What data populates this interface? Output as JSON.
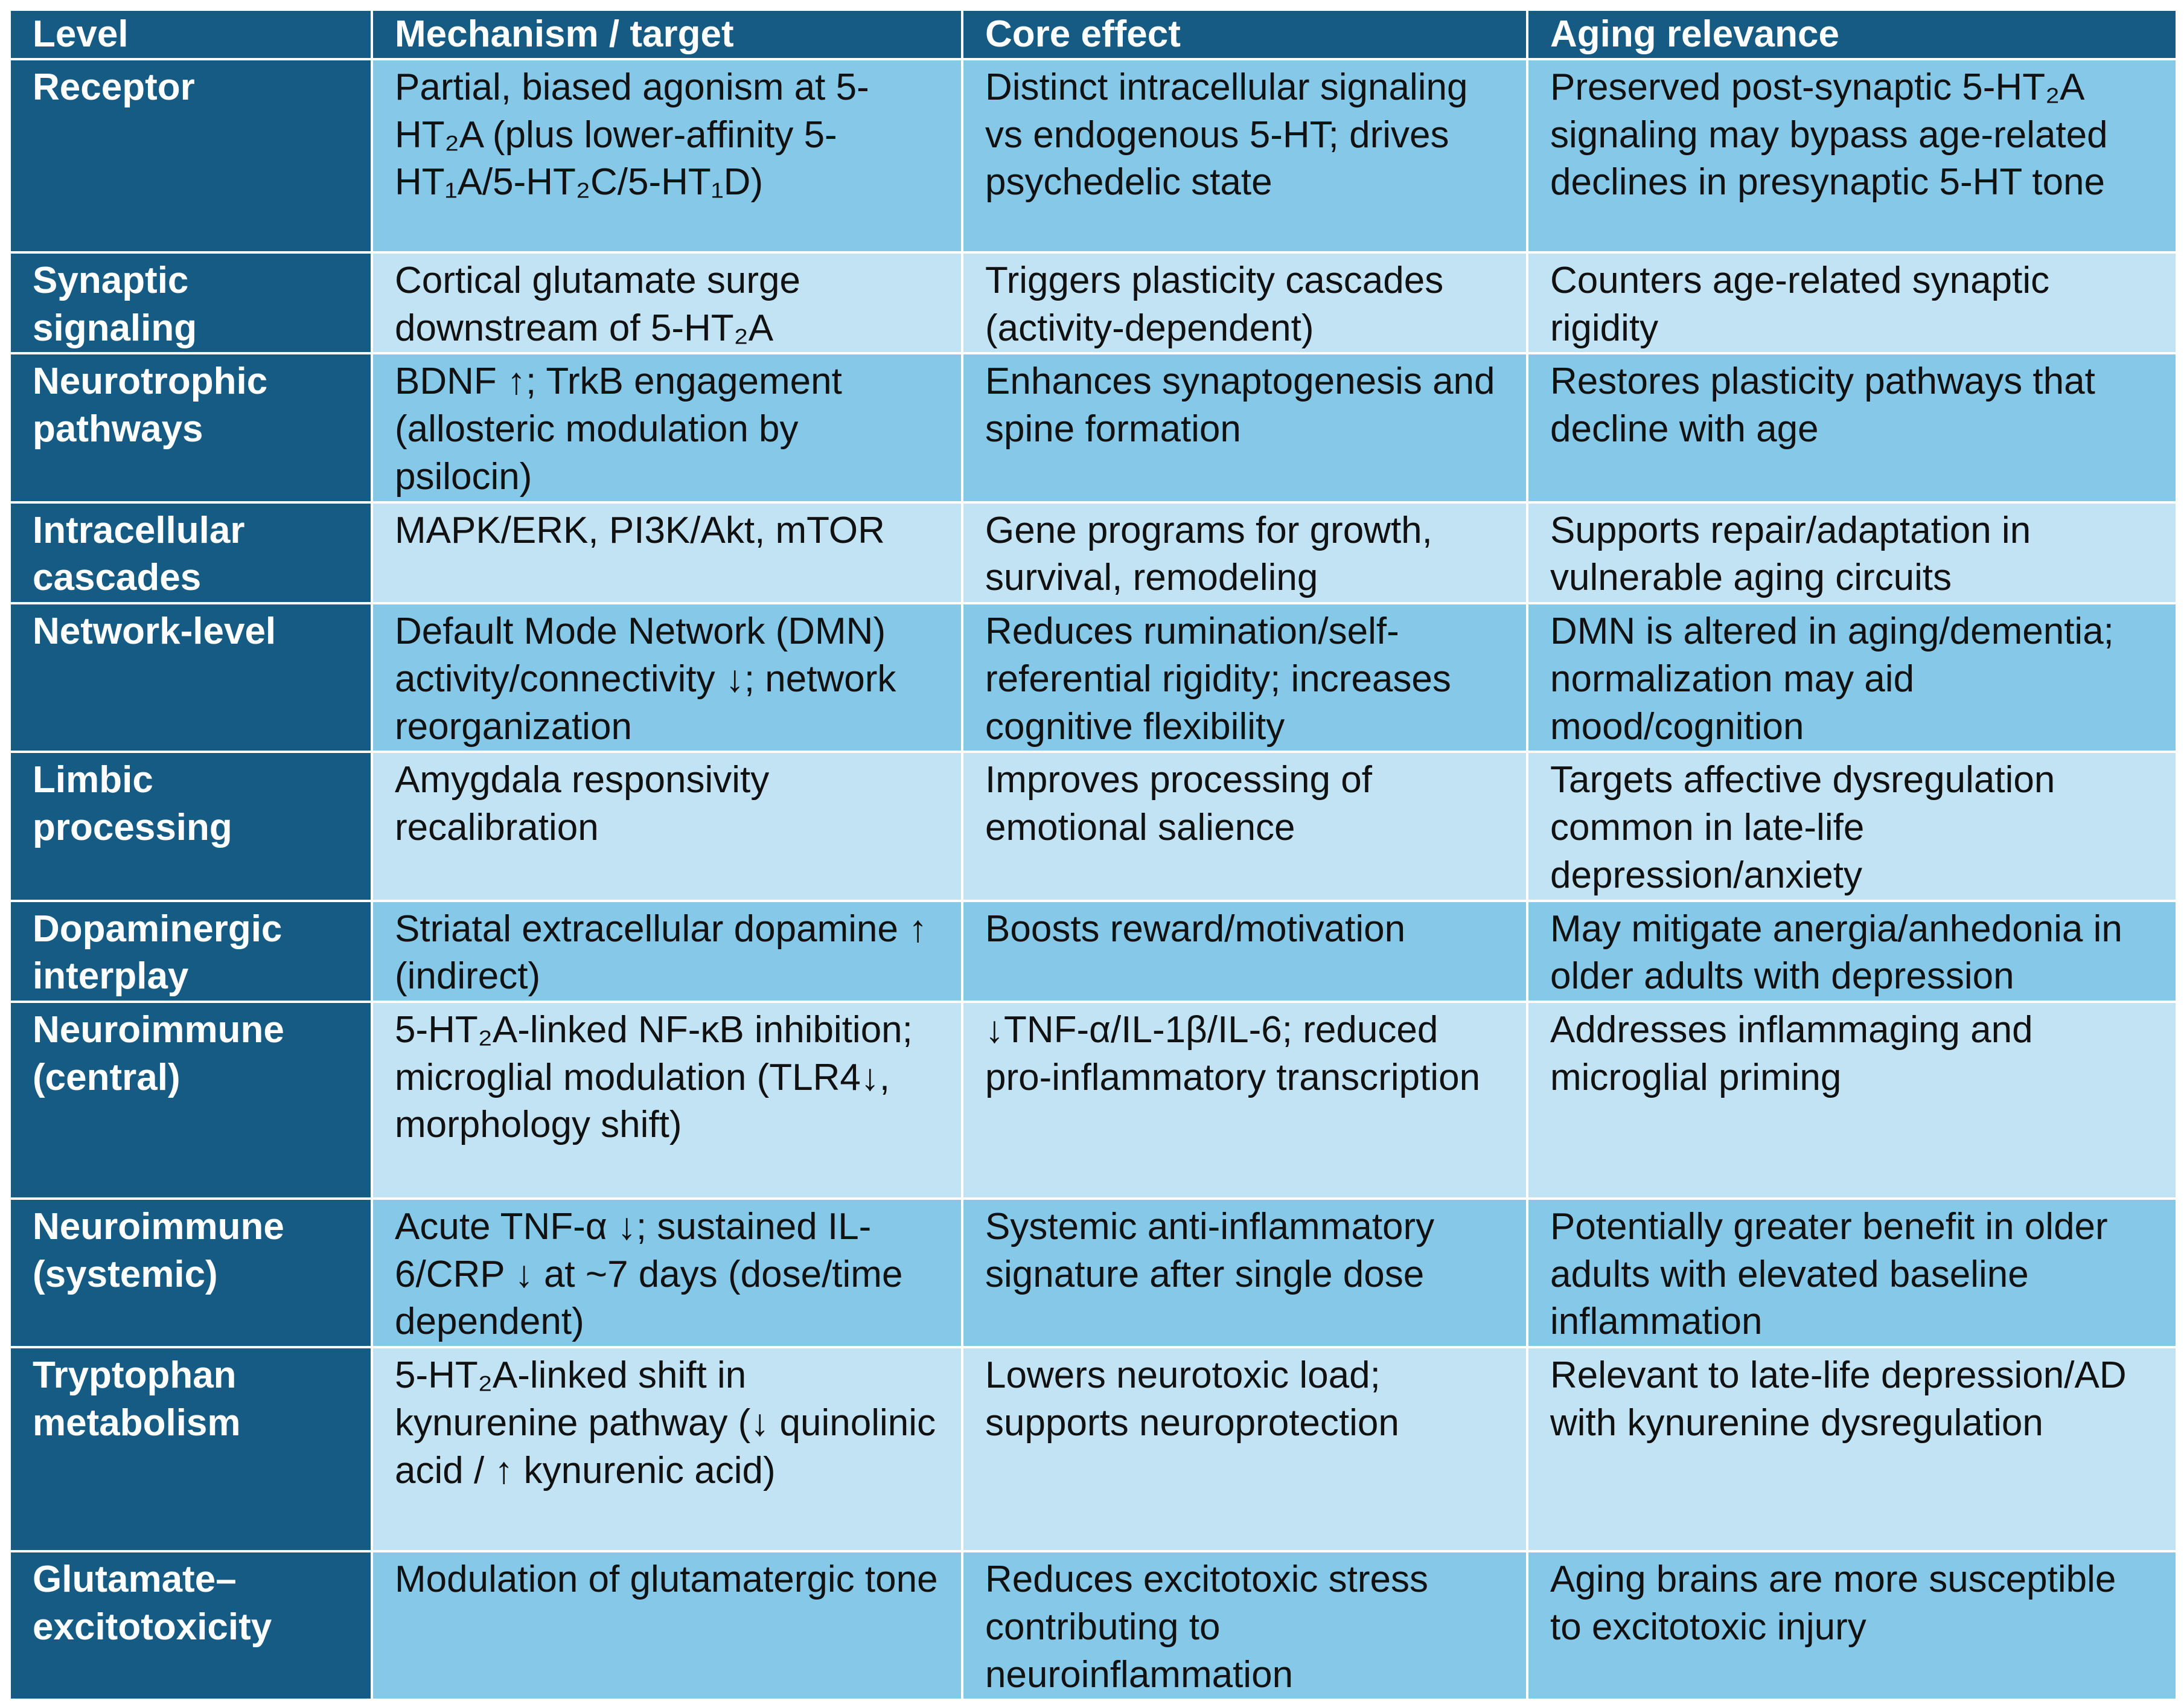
{
  "header": {
    "level": "Level",
    "mechanism": "Mechanism / target",
    "core_effect": "Core effect",
    "aging_relevance": "Aging relevance"
  },
  "colors": {
    "header_bg": "#155b84",
    "row_dark": "#86c8e8",
    "row_light": "#c2e3f3",
    "header_text": "#ffffff",
    "body_text": "#111111"
  },
  "rows": [
    {
      "level": "Receptor",
      "mechanism": "Partial, biased agonism at 5-HT₂A (plus lower-affinity 5-HT₁A/5-HT₂C/5-HT₁D)",
      "core_effect": "Distinct intracellular signaling vs endogenous 5-HT; drives psychedelic state",
      "aging_relevance": "Preserved post-synaptic 5-HT₂A signaling may bypass age-related declines in presynaptic 5-HT tone"
    },
    {
      "level": "Synaptic signaling",
      "mechanism": "Cortical glutamate surge downstream of 5-HT₂A",
      "core_effect": "Triggers plasticity cascades (activity-dependent)",
      "aging_relevance": "Counters age-related synaptic rigidity"
    },
    {
      "level": "Neurotrophic pathways",
      "mechanism": "BDNF ↑; TrkB engagement (allosteric modulation by psilocin)",
      "core_effect": "Enhances synaptogenesis and spine formation",
      "aging_relevance": "Restores plasticity pathways that decline with age"
    },
    {
      "level": "Intracellular cascades",
      "mechanism": "MAPK/ERK, PI3K/Akt, mTOR",
      "core_effect": "Gene programs for growth, survival, remodeling",
      "aging_relevance": "Supports repair/adaptation in vulnerable aging circuits"
    },
    {
      "level": "Network-level",
      "mechanism": "Default Mode Network (DMN) activity/connectivity ↓; network reorganization",
      "core_effect": "Reduces rumination/self-referential rigidity; increases cognitive flexibility",
      "aging_relevance": "DMN is altered in aging/dementia; normalization may aid mood/cognition"
    },
    {
      "level": "Limbic processing",
      "mechanism": "Amygdala responsivity recalibration",
      "core_effect": "Improves processing of emotional salience",
      "aging_relevance": "Targets affective dysregulation common in late-life depression/anxiety"
    },
    {
      "level": "Dopaminergic interplay",
      "mechanism": "Striatal extracellular dopamine ↑ (indirect)",
      "core_effect": "Boosts reward/motivation",
      "aging_relevance": "May mitigate anergia/anhedonia in older adults with depression"
    },
    {
      "level": "Neuroimmune (central)",
      "mechanism": "5-HT₂A-linked NF-κB inhibition; microglial modulation (TLR4↓, morphology shift)",
      "core_effect": "↓TNF-α/IL-1β/IL-6; reduced pro-inflammatory transcription",
      "aging_relevance": "Addresses inflammaging and microglial priming"
    },
    {
      "level": "Neuroimmune (systemic)",
      "mechanism": "Acute TNF-α ↓; sustained IL-6/CRP ↓ at ~7 days (dose/time dependent)",
      "core_effect": "Systemic anti-inflammatory signature after single dose",
      "aging_relevance": "Potentially greater benefit in older adults with elevated baseline inflammation"
    },
    {
      "level": "Tryptophan metabolism",
      "mechanism": "5-HT₂A-linked shift in kynurenine pathway (↓ quinolinic acid / ↑ kynurenic acid)",
      "core_effect": "Lowers neurotoxic load; supports neuroprotection",
      "aging_relevance": "Relevant to late-life depression/AD with kynurenine dysregulation"
    },
    {
      "level": "Glutamate–excitotoxicity",
      "mechanism": "Modulation of glutamatergic tone",
      "core_effect": "Reduces excitotoxic stress contributing to neuroinflammation",
      "aging_relevance": "Aging brains are more susceptible to excitotoxic injury"
    }
  ]
}
